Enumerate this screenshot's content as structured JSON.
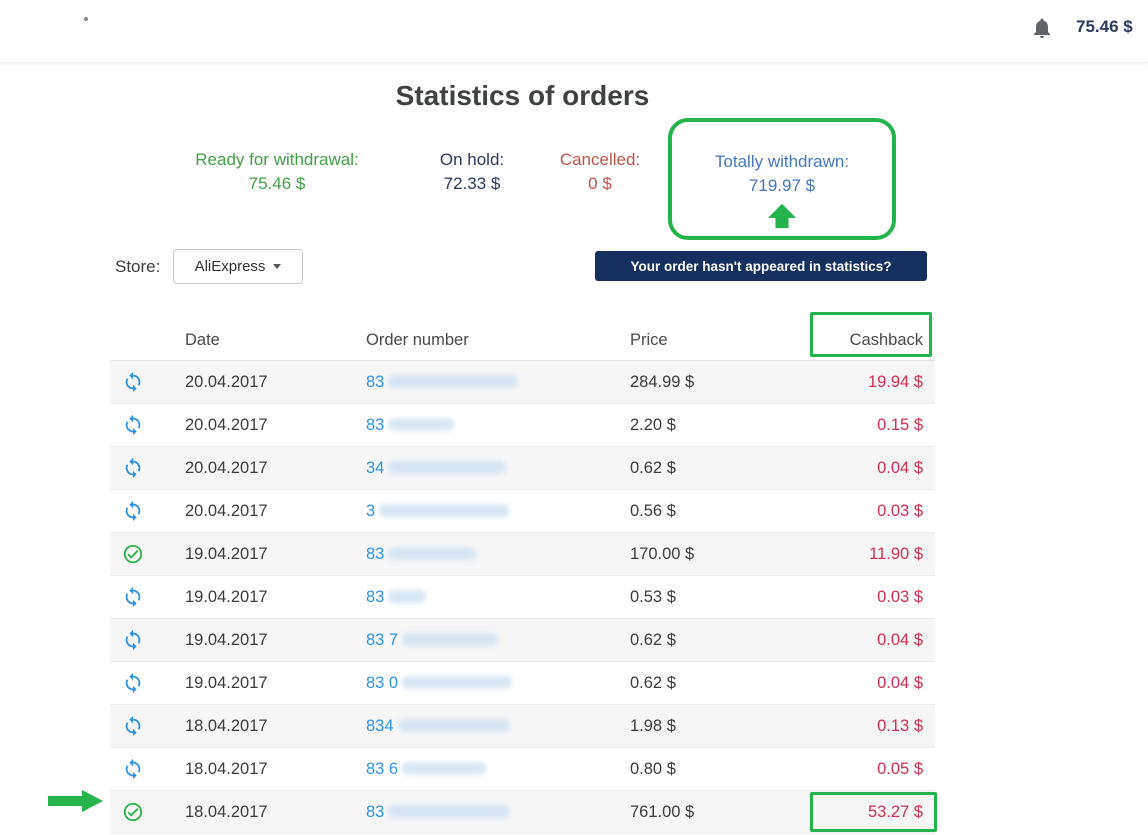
{
  "topbar": {
    "balance": "75.46 $"
  },
  "page": {
    "title": "Statistics of orders"
  },
  "stats": [
    {
      "label": "Ready for withdrawal:",
      "value": "75.46 $"
    },
    {
      "label": "On hold:",
      "value": "72.33 $"
    },
    {
      "label": "Cancelled:",
      "value": "0 $"
    },
    {
      "label": "Totally withdrawn:",
      "value": "719.97 $",
      "annotated": true
    }
  ],
  "store": {
    "label": "Store:",
    "selected": "AliExpress"
  },
  "help_button": {
    "label": "Your order hasn't appeared in statistics?"
  },
  "table": {
    "headers": [
      "Date",
      "Order number",
      "Price",
      "Cashback"
    ],
    "rows": [
      {
        "status": "pending",
        "date": "20.04.2017",
        "order": "83",
        "mask_width": 130,
        "price": "284.99 $",
        "cashback": "19.94 $"
      },
      {
        "status": "pending",
        "date": "20.04.2017",
        "order": "83",
        "mask_width": 66,
        "price": "2.20 $",
        "cashback": "0.15 $"
      },
      {
        "status": "pending",
        "date": "20.04.2017",
        "order": "34",
        "mask_width": 118,
        "price": "0.62 $",
        "cashback": "0.04 $"
      },
      {
        "status": "pending",
        "date": "20.04.2017",
        "order": "3",
        "mask_width": 130,
        "price": "0.56 $",
        "cashback": "0.03 $"
      },
      {
        "status": "done",
        "date": "19.04.2017",
        "order": "83",
        "mask_width": 88,
        "price": "170.00 $",
        "cashback": "11.90 $"
      },
      {
        "status": "pending",
        "date": "19.04.2017",
        "order": "83",
        "mask_width": 38,
        "price": "0.53 $",
        "cashback": "0.03 $"
      },
      {
        "status": "pending",
        "date": "19.04.2017",
        "order": "83 7",
        "mask_width": 96,
        "price": "0.62 $",
        "cashback": "0.04 $"
      },
      {
        "status": "pending",
        "date": "19.04.2017",
        "order": "83 0",
        "mask_width": 110,
        "price": "0.62 $",
        "cashback": "0.04 $"
      },
      {
        "status": "pending",
        "date": "18.04.2017",
        "order": "834",
        "mask_width": 112,
        "price": "1.98 $",
        "cashback": "0.13 $"
      },
      {
        "status": "pending",
        "date": "18.04.2017",
        "order": "83 6",
        "mask_width": 84,
        "price": "0.80 $",
        "cashback": "0.05 $"
      },
      {
        "status": "done",
        "date": "18.04.2017",
        "order": "83",
        "mask_width": 122,
        "price": "761.00 $",
        "cashback": "53.27 $",
        "highlighted": true
      }
    ]
  },
  "colors": {
    "annotation_green": "#25b34b",
    "ready_green": "#43a047",
    "hold_navy": "#2a3b5e",
    "cancelled_red": "#bf544b",
    "cashback_red": "#d22e51",
    "withdrawn_blue": "#4677bd",
    "link_blue": "#2e94e5",
    "button_navy": "#152f5e"
  }
}
